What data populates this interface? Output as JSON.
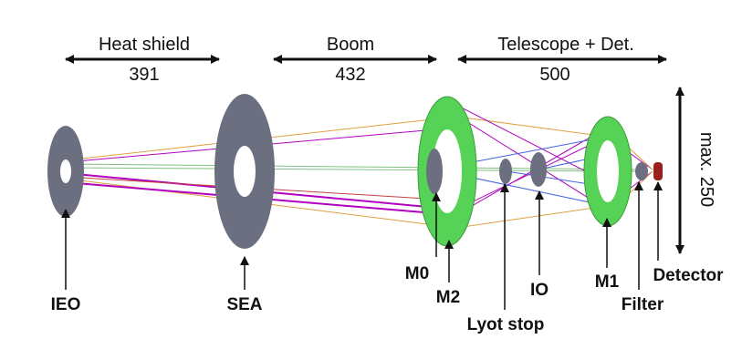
{
  "dimensions": [
    {
      "name": "Heat shield",
      "value": "391"
    },
    {
      "name": "Boom",
      "value": "432"
    },
    {
      "name": "Telescope + Det.",
      "value": "500"
    }
  ],
  "height_label": "max. 250",
  "components": {
    "ieo": "IEO",
    "sea": "SEA",
    "m0": "M0",
    "m2": "M2",
    "lyot_stop": "Lyot stop",
    "io": "IO",
    "m1": "M1",
    "filter": "Filter",
    "detector": "Detector"
  },
  "colors": {
    "gray_disk": "#6c6f80",
    "green_mirror": "#56d356",
    "detector_red": "#9a1f1f",
    "ray_magenta": "#b000c0",
    "ray_blue": "#4060e0",
    "ray_orange": "#e0a040",
    "ray_green": "#80c080"
  }
}
